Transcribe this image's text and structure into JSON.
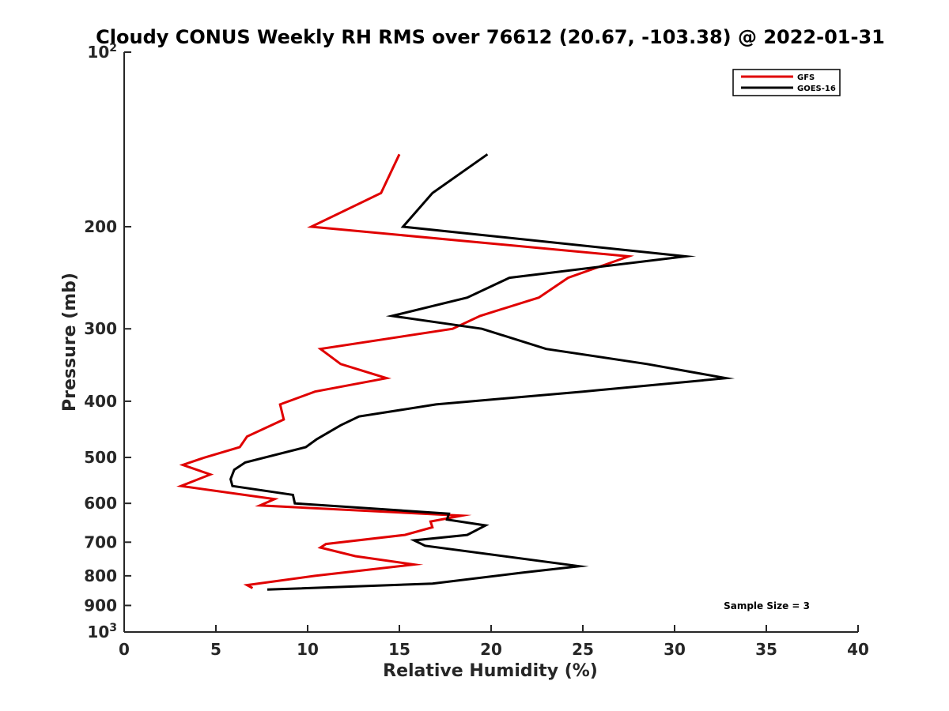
{
  "chart_data": {
    "type": "line",
    "title": "Cloudy CONUS Weekly RH RMS over 76612 (20.67, -103.38) @ 2022-01-31",
    "xlabel": "Relative Humidity (%)",
    "ylabel": "Pressure (mb)",
    "xlim": [
      0,
      40
    ],
    "ylim": [
      100,
      1000
    ],
    "yscale": "log",
    "yreversed": true,
    "x_ticks": [
      0,
      5,
      10,
      15,
      20,
      25,
      30,
      35,
      40
    ],
    "x_tick_labels": [
      "0",
      "5",
      "10",
      "15",
      "20",
      "25",
      "30",
      "35",
      "40"
    ],
    "y_ticks": [
      100,
      200,
      300,
      400,
      500,
      600,
      700,
      800,
      900,
      1000
    ],
    "y_tick_labels": [
      {
        "base": "10",
        "exp": "2"
      },
      {
        "base": "200",
        "exp": ""
      },
      {
        "base": "300",
        "exp": ""
      },
      {
        "base": "400",
        "exp": ""
      },
      {
        "base": "500",
        "exp": ""
      },
      {
        "base": "600",
        "exp": ""
      },
      {
        "base": "700",
        "exp": ""
      },
      {
        "base": "800",
        "exp": ""
      },
      {
        "base": "900",
        "exp": ""
      },
      {
        "base": "10",
        "exp": "3"
      }
    ],
    "legend_position": "top-right",
    "series": [
      {
        "name": "GFS",
        "color": "#e00000",
        "points": [
          [
            15.0,
            150
          ],
          [
            14.0,
            175
          ],
          [
            10.2,
            200
          ],
          [
            27.5,
            225
          ],
          [
            24.2,
            245
          ],
          [
            22.6,
            265
          ],
          [
            19.4,
            285
          ],
          [
            17.9,
            300
          ],
          [
            10.7,
            325
          ],
          [
            11.8,
            345
          ],
          [
            14.3,
            365
          ],
          [
            10.4,
            385
          ],
          [
            8.5,
            405
          ],
          [
            8.7,
            430
          ],
          [
            6.7,
            460
          ],
          [
            6.3,
            480
          ],
          [
            4.4,
            500
          ],
          [
            3.2,
            515
          ],
          [
            4.7,
            535
          ],
          [
            3.1,
            560
          ],
          [
            8.2,
            590
          ],
          [
            7.4,
            605
          ],
          [
            18.4,
            630
          ],
          [
            16.7,
            645
          ],
          [
            16.8,
            660
          ],
          [
            15.3,
            680
          ],
          [
            11.0,
            705
          ],
          [
            10.7,
            715
          ],
          [
            12.6,
            740
          ],
          [
            15.8,
            765
          ],
          [
            10.4,
            800
          ],
          [
            6.7,
            830
          ],
          [
            7.0,
            840
          ]
        ]
      },
      {
        "name": "GOES-16",
        "color": "#000000",
        "points": [
          [
            19.8,
            150
          ],
          [
            16.8,
            175
          ],
          [
            15.2,
            200
          ],
          [
            30.6,
            225
          ],
          [
            21.0,
            245
          ],
          [
            18.7,
            265
          ],
          [
            14.6,
            285
          ],
          [
            19.5,
            300
          ],
          [
            23.0,
            325
          ],
          [
            28.5,
            345
          ],
          [
            32.8,
            365
          ],
          [
            25.0,
            385
          ],
          [
            17.0,
            405
          ],
          [
            12.8,
            425
          ],
          [
            11.8,
            440
          ],
          [
            10.5,
            465
          ],
          [
            9.9,
            480
          ],
          [
            6.6,
            510
          ],
          [
            6.0,
            525
          ],
          [
            5.8,
            545
          ],
          [
            5.9,
            560
          ],
          [
            9.2,
            580
          ],
          [
            9.3,
            600
          ],
          [
            17.7,
            625
          ],
          [
            17.6,
            640
          ],
          [
            19.7,
            655
          ],
          [
            18.7,
            680
          ],
          [
            15.8,
            695
          ],
          [
            16.4,
            710
          ],
          [
            24.8,
            770
          ],
          [
            21.7,
            790
          ],
          [
            16.8,
            825
          ],
          [
            7.8,
            845
          ]
        ]
      }
    ],
    "annotations": [
      "Sample Size = 3"
    ]
  }
}
